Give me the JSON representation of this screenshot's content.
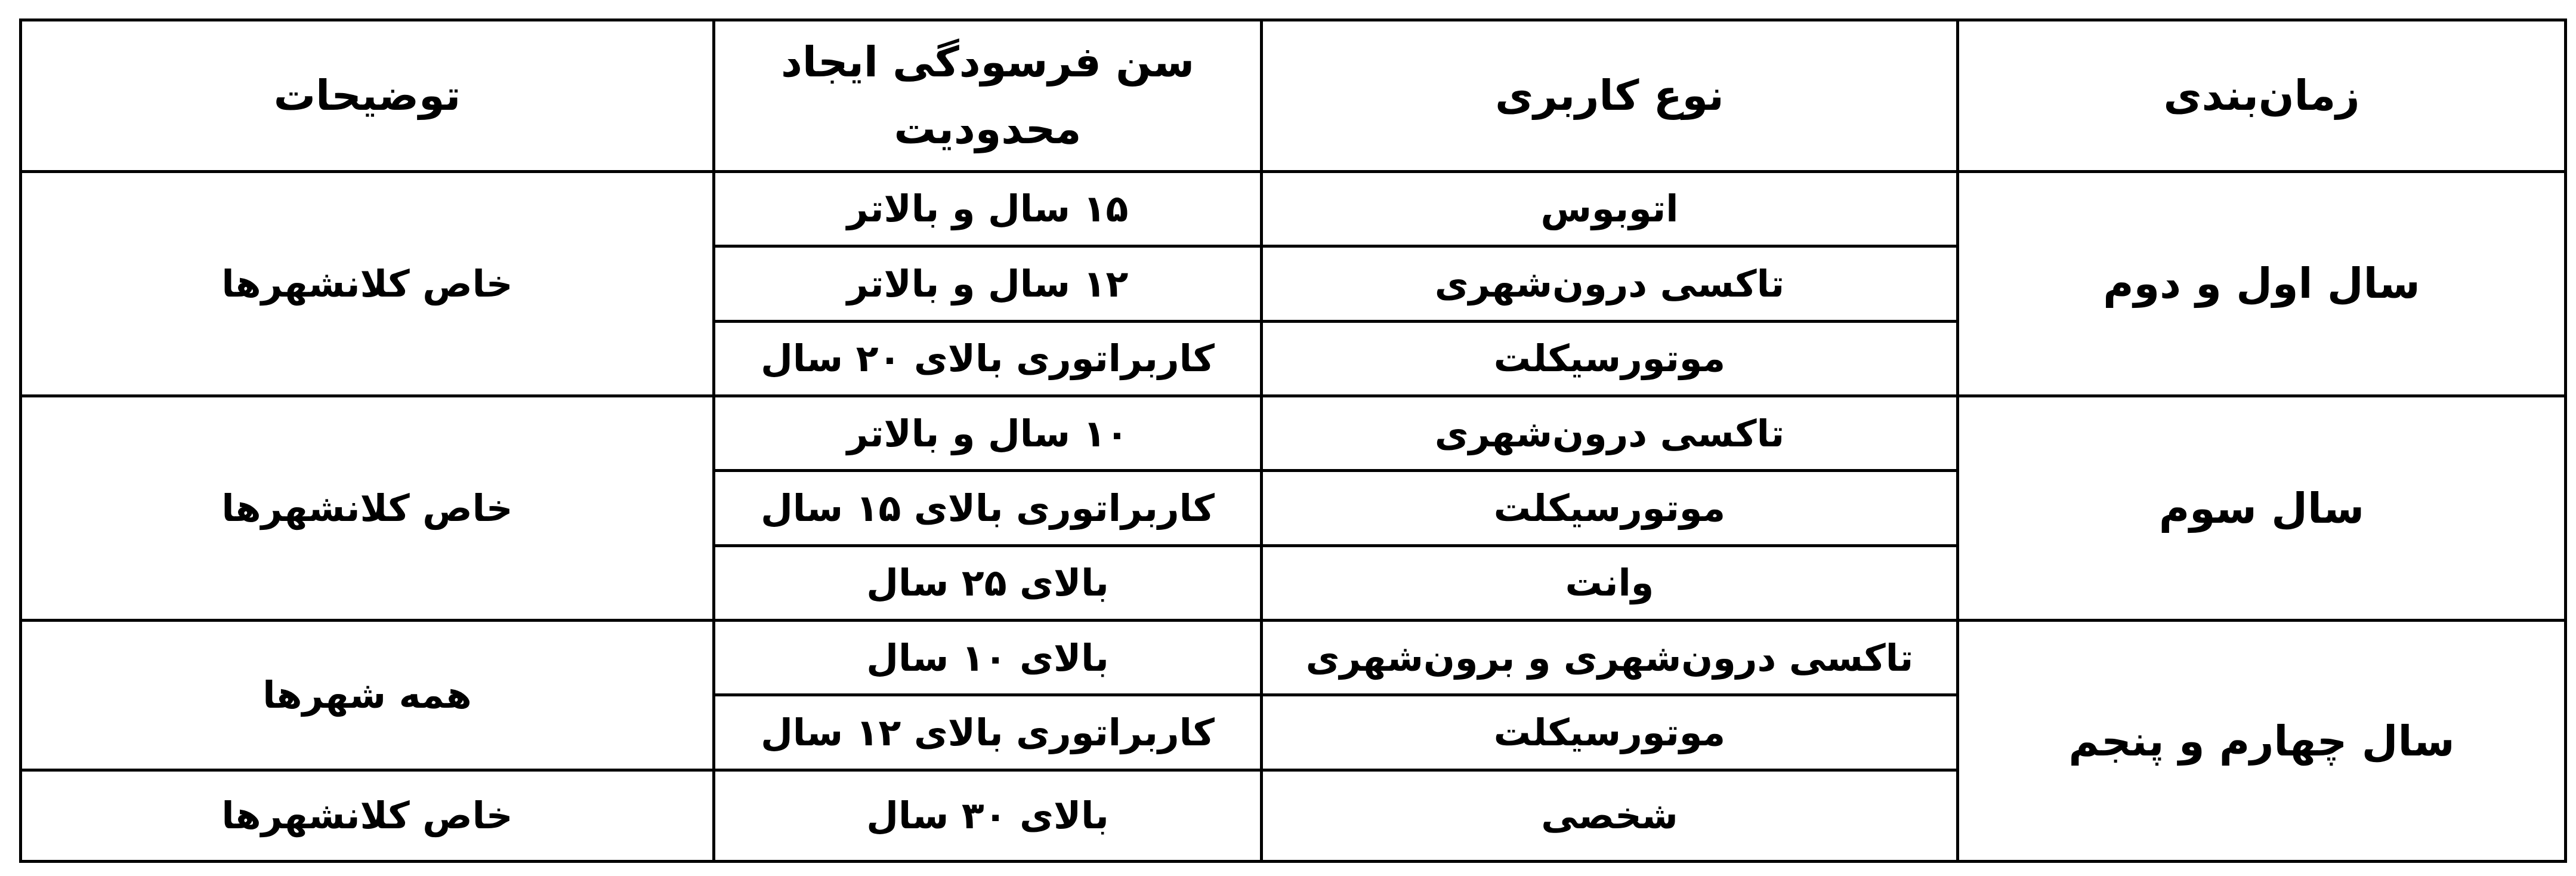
{
  "headers": [
    "زمان‌بندی",
    "نوع کاربری",
    "سن فرسودگی ایجاد محدودیت",
    "توضیحات"
  ],
  "groups": [
    {
      "period": "سال اول و دوم",
      "note": "خاص کلانشهرها",
      "rows": [
        {
          "usage": "اتوبوس",
          "age": "۱۵ سال و بالاتر"
        },
        {
          "usage": "تاکسی درون‌شهری",
          "age": "۱۲ سال و بالاتر"
        },
        {
          "usage": "موتورسیکلت",
          "age": "کاربراتوری بالای ۲۰ سال"
        }
      ]
    },
    {
      "period": "سال سوم",
      "note": "خاص کلانشهرها",
      "rows": [
        {
          "usage": "تاکسی درون‌شهری",
          "age": "۱۰ سال و بالاتر"
        },
        {
          "usage": "موتورسیکلت",
          "age": "کاربراتوری بالای ۱۵ سال"
        },
        {
          "usage": "وانت",
          "age": "بالای ۲۵ سال"
        }
      ]
    },
    {
      "period": "سال چهارم و پنجم",
      "note": "همه شهرها",
      "note2": "خاص کلانشهرها",
      "rows": [
        {
          "usage": "تاکسی درون‌شهری و برون‌شهری",
          "age": "بالای ۱۰ سال"
        },
        {
          "usage": "موتورسیکلت",
          "age": "کاربراتوری بالای ۱۲ سال"
        },
        {
          "usage": "شخصی",
          "age": "بالای ۳۰ سال"
        }
      ]
    }
  ]
}
